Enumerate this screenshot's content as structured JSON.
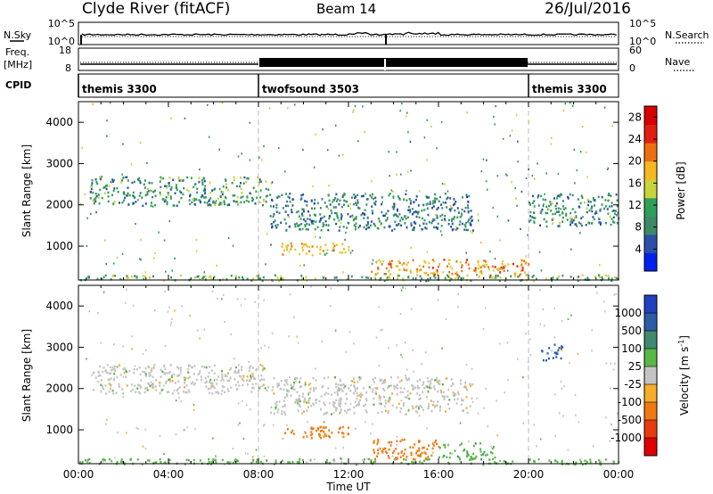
{
  "header": {
    "station": "Clyde River (fitACF)",
    "beam": "Beam 14",
    "date": "26/Jul/2016"
  },
  "sky_panel": {
    "left_label": "N.Sky",
    "left_ticks": [
      "10^5",
      "10^0"
    ],
    "right_ticks": [
      "10^5",
      "10^0"
    ],
    "right_label": "N.Search"
  },
  "freq_panel": {
    "left_label_1": "Freq.",
    "left_label_2": "[MHz]",
    "left_ticks": [
      "18",
      "8"
    ],
    "right_ticks": [
      "60",
      "0"
    ],
    "right_label": "Nave"
  },
  "cpid": {
    "label": "CPID",
    "segments": [
      {
        "name": "themis 3300",
        "start_hour": 0,
        "end_hour": 8
      },
      {
        "name": "twofsound 3503",
        "start_hour": 8,
        "end_hour": 20
      },
      {
        "name": "themis 3300",
        "start_hour": 20,
        "end_hour": 24
      }
    ]
  },
  "colors": {
    "power": [
      "#0020ee",
      "#2b4fa8",
      "#3d8a66",
      "#2fa05a",
      "#c8d43a",
      "#f6b820",
      "#ee6f12",
      "#e02010",
      "#d80000"
    ],
    "velocity": [
      "#2040c0",
      "#2a5da6",
      "#3f8a70",
      "#58b848",
      "#c4c4c4",
      "#f6ae2a",
      "#f07a10",
      "#e83c10",
      "#e00000"
    ],
    "ground_scatter": "#c4c4c4"
  },
  "chart_data": [
    {
      "type": "heatmap",
      "title": "Power",
      "xlabel": "",
      "ylabel": "Slant Range [km]",
      "xlim": [
        0,
        24
      ],
      "ylim": [
        180,
        4500
      ],
      "x_ticks": [
        "00:00",
        "04:00",
        "08:00",
        "12:00",
        "16:00",
        "20:00",
        "00:00"
      ],
      "y_ticks": [
        1000,
        2000,
        3000,
        4000
      ],
      "colorbar": {
        "label": "Power [dB]",
        "ticks": [
          4,
          8,
          12,
          16,
          20,
          24,
          28
        ],
        "range": [
          0,
          30
        ]
      },
      "features": [
        {
          "t_start": 0.5,
          "t_end": 8.5,
          "range_start": 2000,
          "range_end": 2700,
          "value": 10
        },
        {
          "t_start": 8.5,
          "t_end": 17.5,
          "range_start": 1400,
          "range_end": 2300,
          "value": 8
        },
        {
          "t_start": 9.0,
          "t_end": 12.0,
          "range_start": 800,
          "range_end": 1100,
          "value": 18
        },
        {
          "t_start": 13.0,
          "t_end": 20.0,
          "range_start": 300,
          "range_end": 700,
          "value": 20
        },
        {
          "t_start": 20.0,
          "t_end": 24.0,
          "range_start": 1500,
          "range_end": 2300,
          "value": 9
        },
        {
          "t_start": 0.0,
          "t_end": 24.0,
          "range_start": 180,
          "range_end": 320,
          "value": 12
        }
      ]
    },
    {
      "type": "heatmap",
      "title": "Velocity",
      "xlabel": "Time UT",
      "ylabel": "Slant Range [km]",
      "xlim": [
        0,
        24
      ],
      "ylim": [
        180,
        4500
      ],
      "x_ticks": [
        "00:00",
        "04:00",
        "08:00",
        "12:00",
        "16:00",
        "20:00",
        "00:00"
      ],
      "y_ticks": [
        1000,
        2000,
        3000,
        4000
      ],
      "colorbar": {
        "label": "Velocity [m s^-1]",
        "ticks": [
          "1000",
          "500",
          "100",
          "25",
          "-25",
          "-100",
          "-500",
          "-1000"
        ]
      },
      "features": [
        {
          "t_start": 0.5,
          "t_end": 8.5,
          "range_start": 1900,
          "range_end": 2600,
          "value": 0
        },
        {
          "t_start": 8.5,
          "t_end": 17.5,
          "range_start": 1400,
          "range_end": 2300,
          "value": 0
        },
        {
          "t_start": 9.0,
          "t_end": 12.0,
          "range_start": 800,
          "range_end": 1100,
          "value": -150
        },
        {
          "t_start": 13.0,
          "t_end": 16.0,
          "range_start": 300,
          "range_end": 800,
          "value": -400
        },
        {
          "t_start": 16.0,
          "t_end": 18.5,
          "range_start": 300,
          "range_end": 700,
          "value": 80
        },
        {
          "t_start": 20.5,
          "t_end": 21.5,
          "range_start": 2700,
          "range_end": 3100,
          "value": 700
        },
        {
          "t_start": 0.0,
          "t_end": 24.0,
          "range_start": 180,
          "range_end": 320,
          "value": 50
        }
      ]
    }
  ]
}
